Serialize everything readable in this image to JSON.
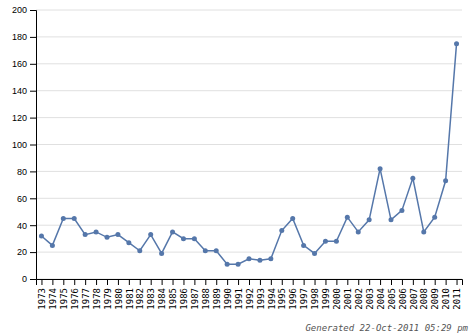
{
  "chart_data": {
    "type": "line",
    "x": [
      1973,
      1974,
      1975,
      1976,
      1977,
      1978,
      1979,
      1980,
      1981,
      1982,
      1983,
      1984,
      1985,
      1986,
      1987,
      1988,
      1989,
      1990,
      1991,
      1992,
      1993,
      1994,
      1995,
      1996,
      1997,
      1998,
      1999,
      2000,
      2001,
      2002,
      2003,
      2004,
      2005,
      2006,
      2007,
      2008,
      2009,
      2010,
      2011
    ],
    "values": [
      32,
      25,
      45,
      45,
      33,
      35,
      31,
      33,
      27,
      21,
      33,
      19,
      35,
      30,
      30,
      21,
      21,
      11,
      11,
      15,
      14,
      15,
      36,
      45,
      25,
      19,
      28,
      28,
      46,
      35,
      44,
      82,
      44,
      51,
      75,
      35,
      46,
      73,
      175
    ],
    "color": "#5577aa",
    "marker": "circle",
    "xlim": [
      1972.5,
      2011.5
    ],
    "xticks": [
      1973,
      1974,
      1975,
      1976,
      1977,
      1978,
      1979,
      1980,
      1981,
      1982,
      1983,
      1984,
      1985,
      1986,
      1987,
      1988,
      1989,
      1990,
      1991,
      1992,
      1993,
      1994,
      1995,
      1996,
      1997,
      1998,
      1999,
      2000,
      2001,
      2002,
      2003,
      2004,
      2005,
      2006,
      2007,
      2008,
      2009,
      2010,
      2011
    ],
    "ylim": [
      0,
      200
    ],
    "yticks": [
      0,
      20,
      40,
      60,
      80,
      100,
      120,
      140,
      160,
      180,
      200
    ],
    "grid": true,
    "annotations": [
      "Generated 22-Oct-2011 05:29 pm"
    ]
  }
}
